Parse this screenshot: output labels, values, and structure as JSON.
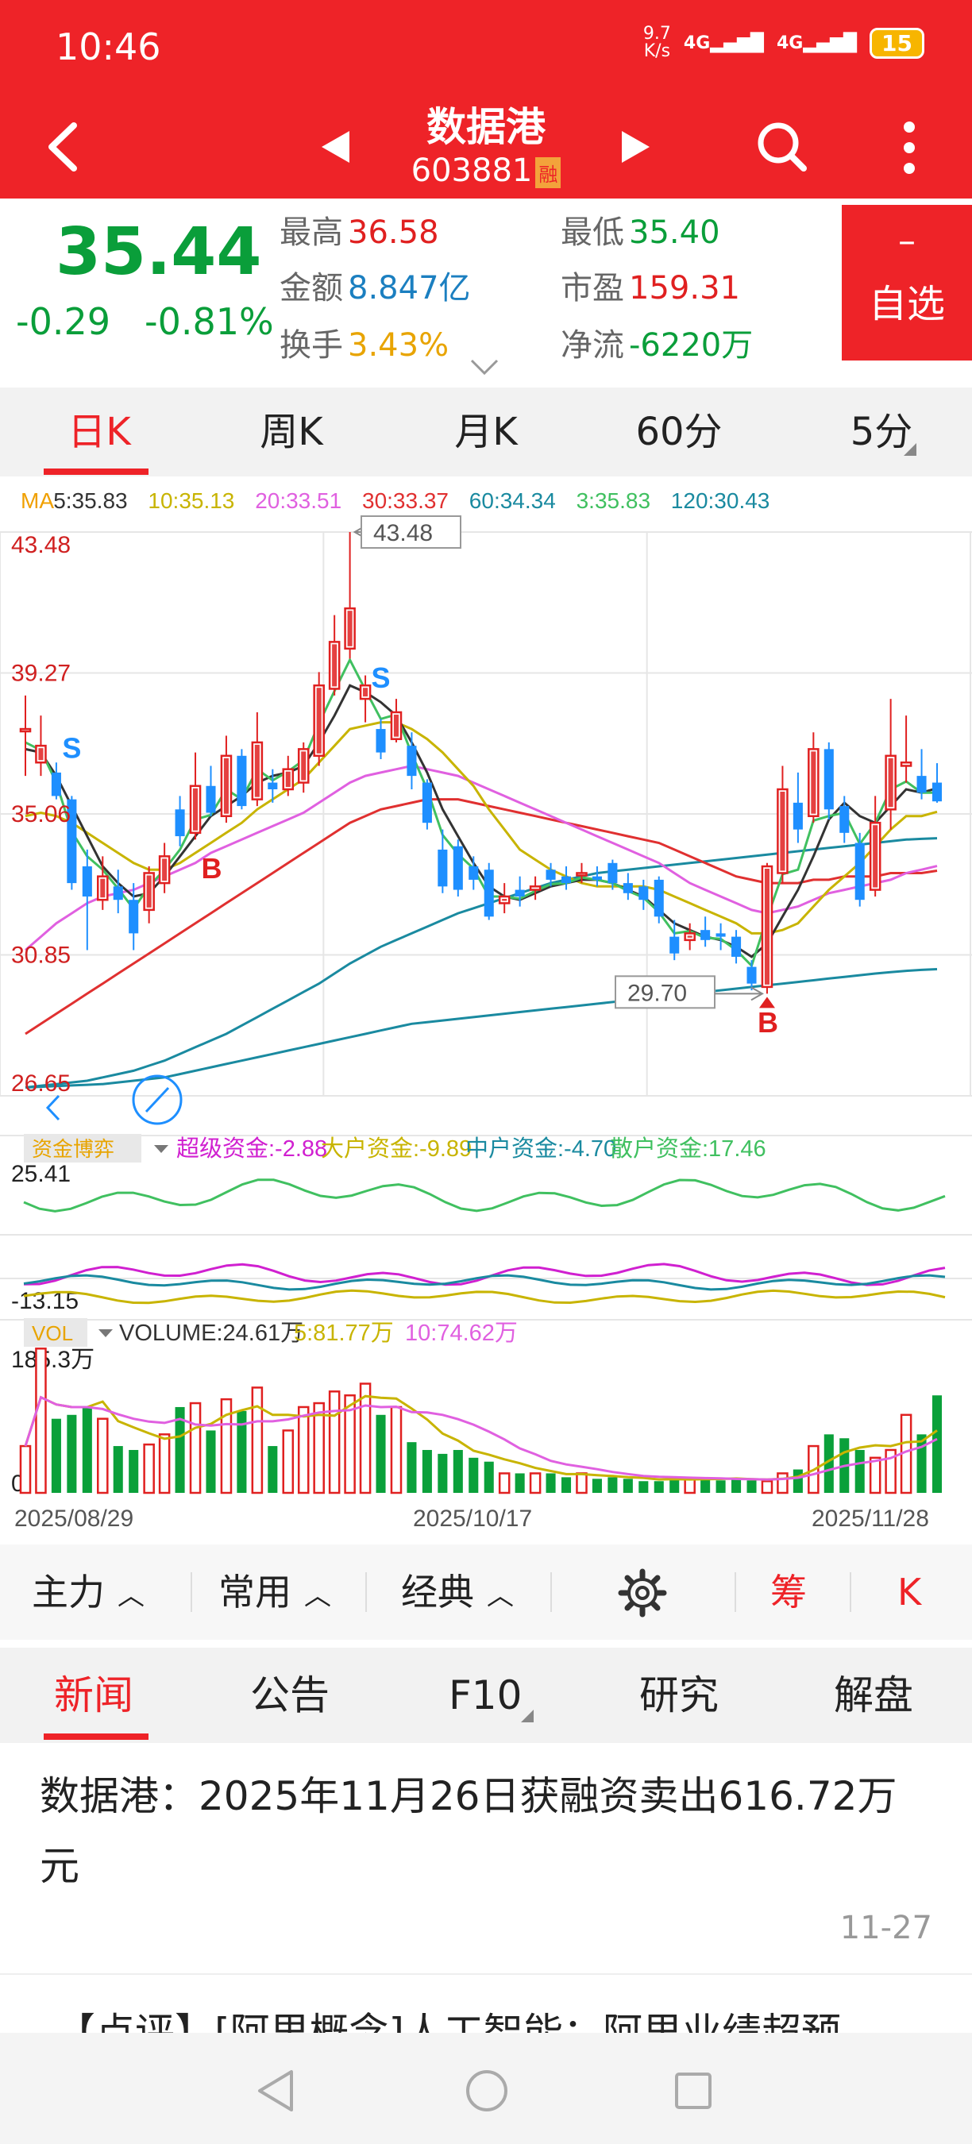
{
  "status": {
    "time": "10:46",
    "speed_top": "9.7",
    "speed_bottom": "K/s",
    "net1": "4G",
    "net2": "4G",
    "battery": "15"
  },
  "header": {
    "title": "数据港",
    "code": "603881",
    "margin_badge": "融"
  },
  "quote": {
    "price": "35.44",
    "change": "-0.29",
    "change_pct": "-0.81%",
    "high_label": "最高",
    "high": "36.58",
    "low_label": "最低",
    "low": "35.40",
    "amount_label": "金额",
    "amount": "8.847亿",
    "pe_label": "市盈",
    "pe": "159.31",
    "turnover_label": "换手",
    "turnover": "3.43%",
    "netflow_label": "净流",
    "netflow": "-6220万",
    "watch_minus": "–",
    "watch_label": "自选"
  },
  "ktabs": [
    {
      "label": "日K",
      "active": true
    },
    {
      "label": "周K"
    },
    {
      "label": "月K"
    },
    {
      "label": "60分"
    },
    {
      "label": "5分"
    }
  ],
  "chart_data": {
    "type": "candlestick",
    "date_start": "2025/08/29",
    "date_mid": "2025/10/17",
    "date_end": "2025/11/28",
    "price_axis": [
      "43.48",
      "39.27",
      "35.06",
      "30.85",
      "26.65"
    ],
    "ylim": [
      26.65,
      43.48
    ],
    "ma_legend": [
      {
        "label": "MA",
        "color": "#f0a000"
      },
      {
        "label": "5:35.83",
        "color": "#333333"
      },
      {
        "label": "10:35.13",
        "color": "#c8b400"
      },
      {
        "label": "20:33.51",
        "color": "#e060e0"
      },
      {
        "label": "30:33.37",
        "color": "#e03030"
      },
      {
        "label": "60:34.34",
        "color": "#1a8aa0"
      },
      {
        "label": "3:35.83",
        "color": "#40c060"
      },
      {
        "label": "120:30.43",
        "color": "#1a8aa0"
      }
    ],
    "max_label": "43.48",
    "min_label": "29.70",
    "signals": [
      "S",
      "S",
      "B",
      "B"
    ],
    "candles": [
      {
        "o": 37.6,
        "c": 37.6,
        "h": 38.6,
        "l": 36.2,
        "up": true
      },
      {
        "o": 36.6,
        "c": 37.1,
        "h": 38.0,
        "l": 36.2,
        "up": true
      },
      {
        "o": 36.3,
        "c": 35.6,
        "h": 36.6,
        "l": 35.5,
        "up": false
      },
      {
        "o": 35.5,
        "c": 33.0,
        "h": 35.6,
        "l": 32.8,
        "up": false
      },
      {
        "o": 33.5,
        "c": 32.6,
        "h": 34.0,
        "l": 31.0,
        "up": false
      },
      {
        "o": 32.5,
        "c": 33.2,
        "h": 33.8,
        "l": 32.2,
        "up": true
      },
      {
        "o": 32.9,
        "c": 32.5,
        "h": 33.4,
        "l": 32.1,
        "up": false
      },
      {
        "o": 32.5,
        "c": 31.5,
        "h": 33.0,
        "l": 31.0,
        "up": false
      },
      {
        "o": 32.2,
        "c": 33.3,
        "h": 33.5,
        "l": 31.8,
        "up": true
      },
      {
        "o": 33.0,
        "c": 33.8,
        "h": 34.2,
        "l": 32.7,
        "up": true
      },
      {
        "o": 35.2,
        "c": 34.4,
        "h": 35.6,
        "l": 34.1,
        "up": false
      },
      {
        "o": 34.5,
        "c": 35.9,
        "h": 36.9,
        "l": 34.3,
        "up": true
      },
      {
        "o": 35.9,
        "c": 35.1,
        "h": 36.5,
        "l": 35.0,
        "up": false
      },
      {
        "o": 35.0,
        "c": 36.8,
        "h": 37.4,
        "l": 34.8,
        "up": true
      },
      {
        "o": 36.8,
        "c": 35.3,
        "h": 37.0,
        "l": 35.2,
        "up": false
      },
      {
        "o": 35.5,
        "c": 37.2,
        "h": 38.1,
        "l": 35.3,
        "up": true
      },
      {
        "o": 36.0,
        "c": 35.8,
        "h": 36.4,
        "l": 35.4,
        "up": false
      },
      {
        "o": 35.8,
        "c": 36.4,
        "h": 36.8,
        "l": 35.6,
        "up": true
      },
      {
        "o": 36.0,
        "c": 37.0,
        "h": 37.2,
        "l": 35.7,
        "up": true
      },
      {
        "o": 36.8,
        "c": 38.9,
        "h": 39.3,
        "l": 36.5,
        "up": true
      },
      {
        "o": 38.8,
        "c": 40.2,
        "h": 41.0,
        "l": 38.6,
        "up": true
      },
      {
        "o": 40.0,
        "c": 41.2,
        "h": 43.48,
        "l": 39.7,
        "up": true
      },
      {
        "o": 38.5,
        "c": 38.9,
        "h": 39.2,
        "l": 37.8,
        "up": true
      },
      {
        "o": 37.6,
        "c": 36.9,
        "h": 37.9,
        "l": 36.7,
        "up": false
      },
      {
        "o": 37.3,
        "c": 38.1,
        "h": 38.5,
        "l": 37.2,
        "up": true
      },
      {
        "o": 37.1,
        "c": 36.2,
        "h": 37.5,
        "l": 35.8,
        "up": false
      },
      {
        "o": 36.0,
        "c": 34.8,
        "h": 36.1,
        "l": 34.6,
        "up": false
      },
      {
        "o": 34.0,
        "c": 32.9,
        "h": 34.6,
        "l": 32.7,
        "up": false
      },
      {
        "o": 34.1,
        "c": 32.8,
        "h": 34.3,
        "l": 32.6,
        "up": false
      },
      {
        "o": 33.5,
        "c": 33.1,
        "h": 33.8,
        "l": 32.8,
        "up": false
      },
      {
        "o": 33.4,
        "c": 32.0,
        "h": 33.6,
        "l": 31.9,
        "up": false
      },
      {
        "o": 32.4,
        "c": 32.6,
        "h": 33.0,
        "l": 32.1,
        "up": true
      },
      {
        "o": 32.8,
        "c": 32.6,
        "h": 33.2,
        "l": 32.3,
        "up": false
      },
      {
        "o": 32.8,
        "c": 32.9,
        "h": 33.2,
        "l": 32.5,
        "up": true
      },
      {
        "o": 33.4,
        "c": 33.1,
        "h": 33.6,
        "l": 32.9,
        "up": false
      },
      {
        "o": 33.2,
        "c": 33.0,
        "h": 33.5,
        "l": 32.8,
        "up": false
      },
      {
        "o": 33.3,
        "c": 33.3,
        "h": 33.6,
        "l": 33.0,
        "up": true
      },
      {
        "o": 33.2,
        "c": 33.1,
        "h": 33.5,
        "l": 32.9,
        "up": false
      },
      {
        "o": 33.6,
        "c": 33.0,
        "h": 33.7,
        "l": 32.8,
        "up": false
      },
      {
        "o": 33.0,
        "c": 32.7,
        "h": 33.3,
        "l": 32.5,
        "up": false
      },
      {
        "o": 32.9,
        "c": 32.5,
        "h": 33.1,
        "l": 32.2,
        "up": false
      },
      {
        "o": 33.1,
        "c": 32.0,
        "h": 33.2,
        "l": 31.8,
        "up": false
      },
      {
        "o": 31.4,
        "c": 30.9,
        "h": 31.9,
        "l": 30.7,
        "up": false
      },
      {
        "o": 31.3,
        "c": 31.5,
        "h": 31.8,
        "l": 31.0,
        "up": true
      },
      {
        "o": 31.6,
        "c": 31.3,
        "h": 32.0,
        "l": 31.1,
        "up": false
      },
      {
        "o": 31.5,
        "c": 31.4,
        "h": 31.8,
        "l": 31.0,
        "up": false
      },
      {
        "o": 31.4,
        "c": 30.8,
        "h": 31.6,
        "l": 30.6,
        "up": false
      },
      {
        "o": 30.5,
        "c": 30.0,
        "h": 30.7,
        "l": 29.8,
        "up": false
      },
      {
        "o": 29.9,
        "c": 33.5,
        "h": 33.6,
        "l": 29.7,
        "up": true
      },
      {
        "o": 33.3,
        "c": 35.8,
        "h": 36.5,
        "l": 33.0,
        "up": true
      },
      {
        "o": 35.4,
        "c": 34.6,
        "h": 36.3,
        "l": 34.2,
        "up": false
      },
      {
        "o": 35.0,
        "c": 37.0,
        "h": 37.5,
        "l": 34.8,
        "up": true
      },
      {
        "o": 37.0,
        "c": 35.2,
        "h": 37.2,
        "l": 34.9,
        "up": false
      },
      {
        "o": 35.3,
        "c": 34.5,
        "h": 35.6,
        "l": 34.2,
        "up": false
      },
      {
        "o": 34.2,
        "c": 32.5,
        "h": 34.5,
        "l": 32.3,
        "up": false
      },
      {
        "o": 32.8,
        "c": 34.8,
        "h": 35.6,
        "l": 32.6,
        "up": true
      },
      {
        "o": 35.2,
        "c": 36.8,
        "h": 38.5,
        "l": 34.6,
        "up": true
      },
      {
        "o": 36.6,
        "c": 36.5,
        "h": 38.0,
        "l": 36.0,
        "up": true
      },
      {
        "o": 36.2,
        "c": 35.7,
        "h": 37.0,
        "l": 35.5,
        "up": false
      },
      {
        "o": 36.0,
        "c": 35.44,
        "h": 36.58,
        "l": 35.4,
        "up": false
      }
    ],
    "ma5": [
      37.0,
      36.9,
      36.2,
      35.3,
      34.4,
      33.5,
      33.0,
      32.6,
      32.7,
      33.2,
      33.8,
      34.4,
      35.0,
      35.3,
      35.6,
      36.0,
      36.2,
      36.3,
      36.5,
      37.2,
      38.0,
      38.9,
      38.7,
      38.4,
      38.0,
      37.2,
      36.3,
      35.2,
      34.4,
      33.6,
      32.9,
      32.6,
      32.5,
      32.7,
      32.9,
      33.0,
      33.1,
      33.1,
      33.0,
      32.8,
      32.6,
      32.2,
      31.8,
      31.6,
      31.4,
      31.3,
      31.1,
      30.8,
      31.2,
      32.0,
      32.8,
      33.8,
      34.9,
      35.4,
      35.0,
      34.8,
      35.3,
      35.8,
      35.7,
      35.83
    ],
    "ma10": [
      35.0,
      35.1,
      35.0,
      34.8,
      34.5,
      34.2,
      33.9,
      33.6,
      33.4,
      33.4,
      33.6,
      33.9,
      34.2,
      34.5,
      34.8,
      35.2,
      35.5,
      35.8,
      36.1,
      36.6,
      37.1,
      37.6,
      37.7,
      37.8,
      37.8,
      37.6,
      37.3,
      36.9,
      36.4,
      35.9,
      35.2,
      34.6,
      34.0,
      33.7,
      33.4,
      33.2,
      33.0,
      32.9,
      32.9,
      32.9,
      32.9,
      32.8,
      32.6,
      32.4,
      32.2,
      32.0,
      31.8,
      31.5,
      31.5,
      31.6,
      31.8,
      32.3,
      32.8,
      33.2,
      33.6,
      34.1,
      34.6,
      35.0,
      35.0,
      35.13
    ],
    "ma20": [
      31.0,
      31.4,
      31.8,
      32.1,
      32.4,
      32.6,
      32.7,
      32.8,
      33.0,
      33.2,
      33.4,
      33.6,
      33.9,
      34.1,
      34.3,
      34.5,
      34.7,
      34.9,
      35.1,
      35.4,
      35.7,
      36.0,
      36.2,
      36.3,
      36.4,
      36.5,
      36.4,
      36.3,
      36.2,
      36.0,
      35.8,
      35.6,
      35.4,
      35.2,
      35.0,
      34.8,
      34.6,
      34.4,
      34.2,
      34.0,
      33.8,
      33.6,
      33.3,
      33.0,
      32.8,
      32.6,
      32.4,
      32.2,
      32.1,
      32.2,
      32.3,
      32.5,
      32.7,
      32.8,
      32.9,
      33.0,
      33.1,
      33.3,
      33.4,
      33.51
    ],
    "ma30": [
      28.5,
      28.8,
      29.1,
      29.4,
      29.7,
      30.0,
      30.3,
      30.6,
      30.9,
      31.2,
      31.5,
      31.8,
      32.1,
      32.4,
      32.7,
      33.0,
      33.3,
      33.6,
      33.9,
      34.2,
      34.5,
      34.8,
      35.0,
      35.2,
      35.3,
      35.4,
      35.5,
      35.5,
      35.5,
      35.4,
      35.3,
      35.2,
      35.1,
      35.0,
      34.9,
      34.8,
      34.7,
      34.6,
      34.5,
      34.4,
      34.3,
      34.2,
      34.0,
      33.8,
      33.6,
      33.4,
      33.2,
      33.1,
      33.0,
      33.0,
      33.0,
      33.1,
      33.1,
      33.2,
      33.2,
      33.2,
      33.3,
      33.3,
      33.3,
      33.37
    ],
    "ma60": [
      26.9,
      26.95,
      27.0,
      27.05,
      27.1,
      27.2,
      27.3,
      27.4,
      27.55,
      27.7,
      27.9,
      28.1,
      28.3,
      28.5,
      28.75,
      29.0,
      29.25,
      29.5,
      29.75,
      30.0,
      30.3,
      30.6,
      30.85,
      31.1,
      31.3,
      31.5,
      31.7,
      31.9,
      32.1,
      32.25,
      32.4,
      32.55,
      32.7,
      32.85,
      33.0,
      33.1,
      33.2,
      33.3,
      33.35,
      33.4,
      33.45,
      33.5,
      33.55,
      33.6,
      33.65,
      33.7,
      33.75,
      33.8,
      33.85,
      33.9,
      33.95,
      34.0,
      34.05,
      34.1,
      34.15,
      34.2,
      34.25,
      34.3,
      34.32,
      34.34
    ],
    "ma120": [
      26.9,
      26.92,
      26.94,
      26.96,
      26.98,
      27.0,
      27.05,
      27.1,
      27.15,
      27.2,
      27.3,
      27.4,
      27.5,
      27.6,
      27.7,
      27.8,
      27.9,
      28.0,
      28.1,
      28.2,
      28.3,
      28.4,
      28.5,
      28.6,
      28.7,
      28.8,
      28.85,
      28.9,
      28.95,
      29.0,
      29.05,
      29.1,
      29.15,
      29.2,
      29.25,
      29.3,
      29.35,
      29.4,
      29.45,
      29.5,
      29.55,
      29.6,
      29.65,
      29.7,
      29.75,
      29.8,
      29.85,
      29.9,
      29.95,
      30.0,
      30.05,
      30.1,
      30.15,
      30.2,
      30.25,
      30.3,
      30.34,
      30.38,
      30.41,
      30.43
    ],
    "fund": {
      "name": "资金博弈",
      "legend": [
        {
          "label": "超级资金:-2.88",
          "color": "#d020d0"
        },
        {
          "label": "大户资金:-9.89",
          "color": "#c8b400"
        },
        {
          "label": "中户资金:-4.70",
          "color": "#1a8aa0"
        },
        {
          "label": "散户资金:17.46",
          "color": "#40c060"
        }
      ],
      "ymax": "25.41",
      "ymin": "-13.15"
    },
    "volume": {
      "name": "VOL",
      "legend": [
        {
          "label": "VOLUME:24.61万",
          "color": "#333333"
        },
        {
          "label": "5:81.77万",
          "color": "#c8b400"
        },
        {
          "label": "10:74.62万",
          "color": "#e060e0"
        }
      ],
      "ymax": "185.3万",
      "ymin": "0"
    }
  },
  "toolbar": {
    "main": "主力",
    "common": "常用",
    "classic": "经典",
    "chip": "筹",
    "k": "K"
  },
  "news_tabs": [
    {
      "label": "新闻",
      "active": true
    },
    {
      "label": "公告"
    },
    {
      "label": "F10"
    },
    {
      "label": "研究"
    },
    {
      "label": "解盘"
    }
  ],
  "news": [
    {
      "title": "数据港：2025年11月26日获融资卖出616.72万元",
      "date": "11-27"
    },
    {
      "title": "【点评】[阿里概念]人工智能：阿里业绩超预"
    }
  ]
}
